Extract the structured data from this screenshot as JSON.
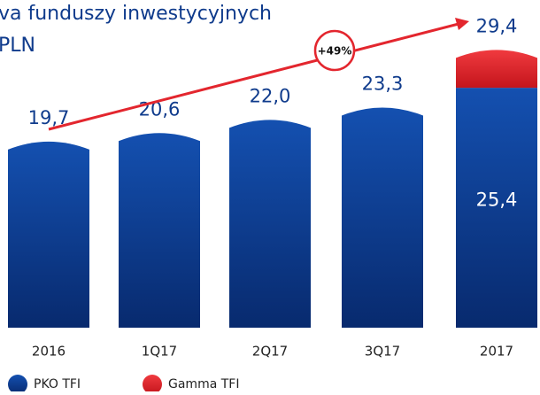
{
  "chart_data": {
    "type": "stacked-bar",
    "title": "va funduszy inwestycyjnych",
    "subtitle": "PLN",
    "categories": [
      "2016",
      "1Q17",
      "2Q17",
      "3Q17",
      "2017"
    ],
    "series": [
      {
        "name": "PKO TFI",
        "color": "#0a3d91",
        "values": [
          19.7,
          20.6,
          22.0,
          23.3,
          25.4
        ],
        "value_labels": [
          null,
          null,
          null,
          null,
          "25,4"
        ]
      },
      {
        "name": "Gamma TFI",
        "color": "#e3262e",
        "values": [
          null,
          null,
          null,
          null,
          4.0
        ]
      }
    ],
    "totals": {
      "values": [
        19.7,
        20.6,
        22.0,
        23.3,
        29.4
      ],
      "value_labels": [
        "19,7",
        "20,6",
        "22,0",
        "23,3",
        "29,4"
      ]
    },
    "annotation": "+49%",
    "ylim": [
      0,
      30
    ],
    "legend": "bottom-left"
  }
}
